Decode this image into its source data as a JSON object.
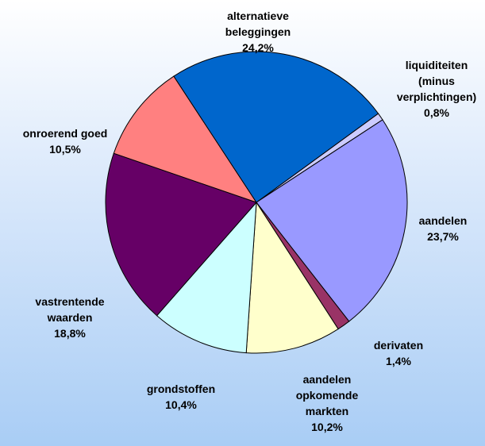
{
  "chart_data": {
    "type": "pie",
    "categories": [
      "liquiditeiten (minus verplichtingen)",
      "aandelen",
      "derivaten",
      "aandelen opkomende markten",
      "grondstoffen",
      "vastrentende waarden",
      "onroerend goed",
      "alternatieve beleggingen"
    ],
    "values": [
      0.8,
      23.7,
      1.4,
      10.2,
      10.4,
      18.8,
      10.5,
      24.2
    ],
    "value_labels": [
      "0,8%",
      "23,7%",
      "1,4%",
      "10,2%",
      "10,4%",
      "18,8%",
      "10,5%",
      "24,2%"
    ],
    "colors": [
      "#ccccff",
      "#9999ff",
      "#993366",
      "#ffffcc",
      "#ccffff",
      "#660066",
      "#ff8080",
      "#0066cc"
    ]
  }
}
